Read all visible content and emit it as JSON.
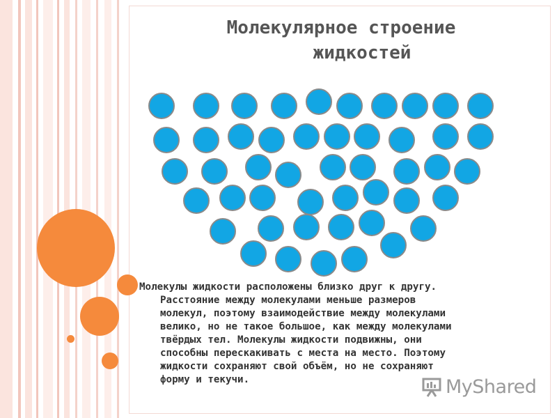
{
  "title": {
    "line1": "Молекулярное строение",
    "line2": "жидкостей"
  },
  "colors": {
    "molecule": "#12a6e4",
    "accent": "#f58a3c",
    "stripe": "#f4cfc7"
  },
  "paragraph_lines": [
    "Молекулы жидкости расположены близко друг к другу.",
    "Расстояние между молекулами меньше размеров",
    "молекул, поэтому взаимодействие между молекулами",
    "велико, но не такое большое, как между молекулами",
    "твёрдых тел. Молекулы жидкости подвижны, они",
    "способны перескакивать с места на место. Поэтому",
    "жидкости сохраняют свой объём, но не сохраняют",
    "форму и текучи."
  ],
  "logo": {
    "text": "MyShared",
    "icon": "presentation-board-icon"
  }
}
